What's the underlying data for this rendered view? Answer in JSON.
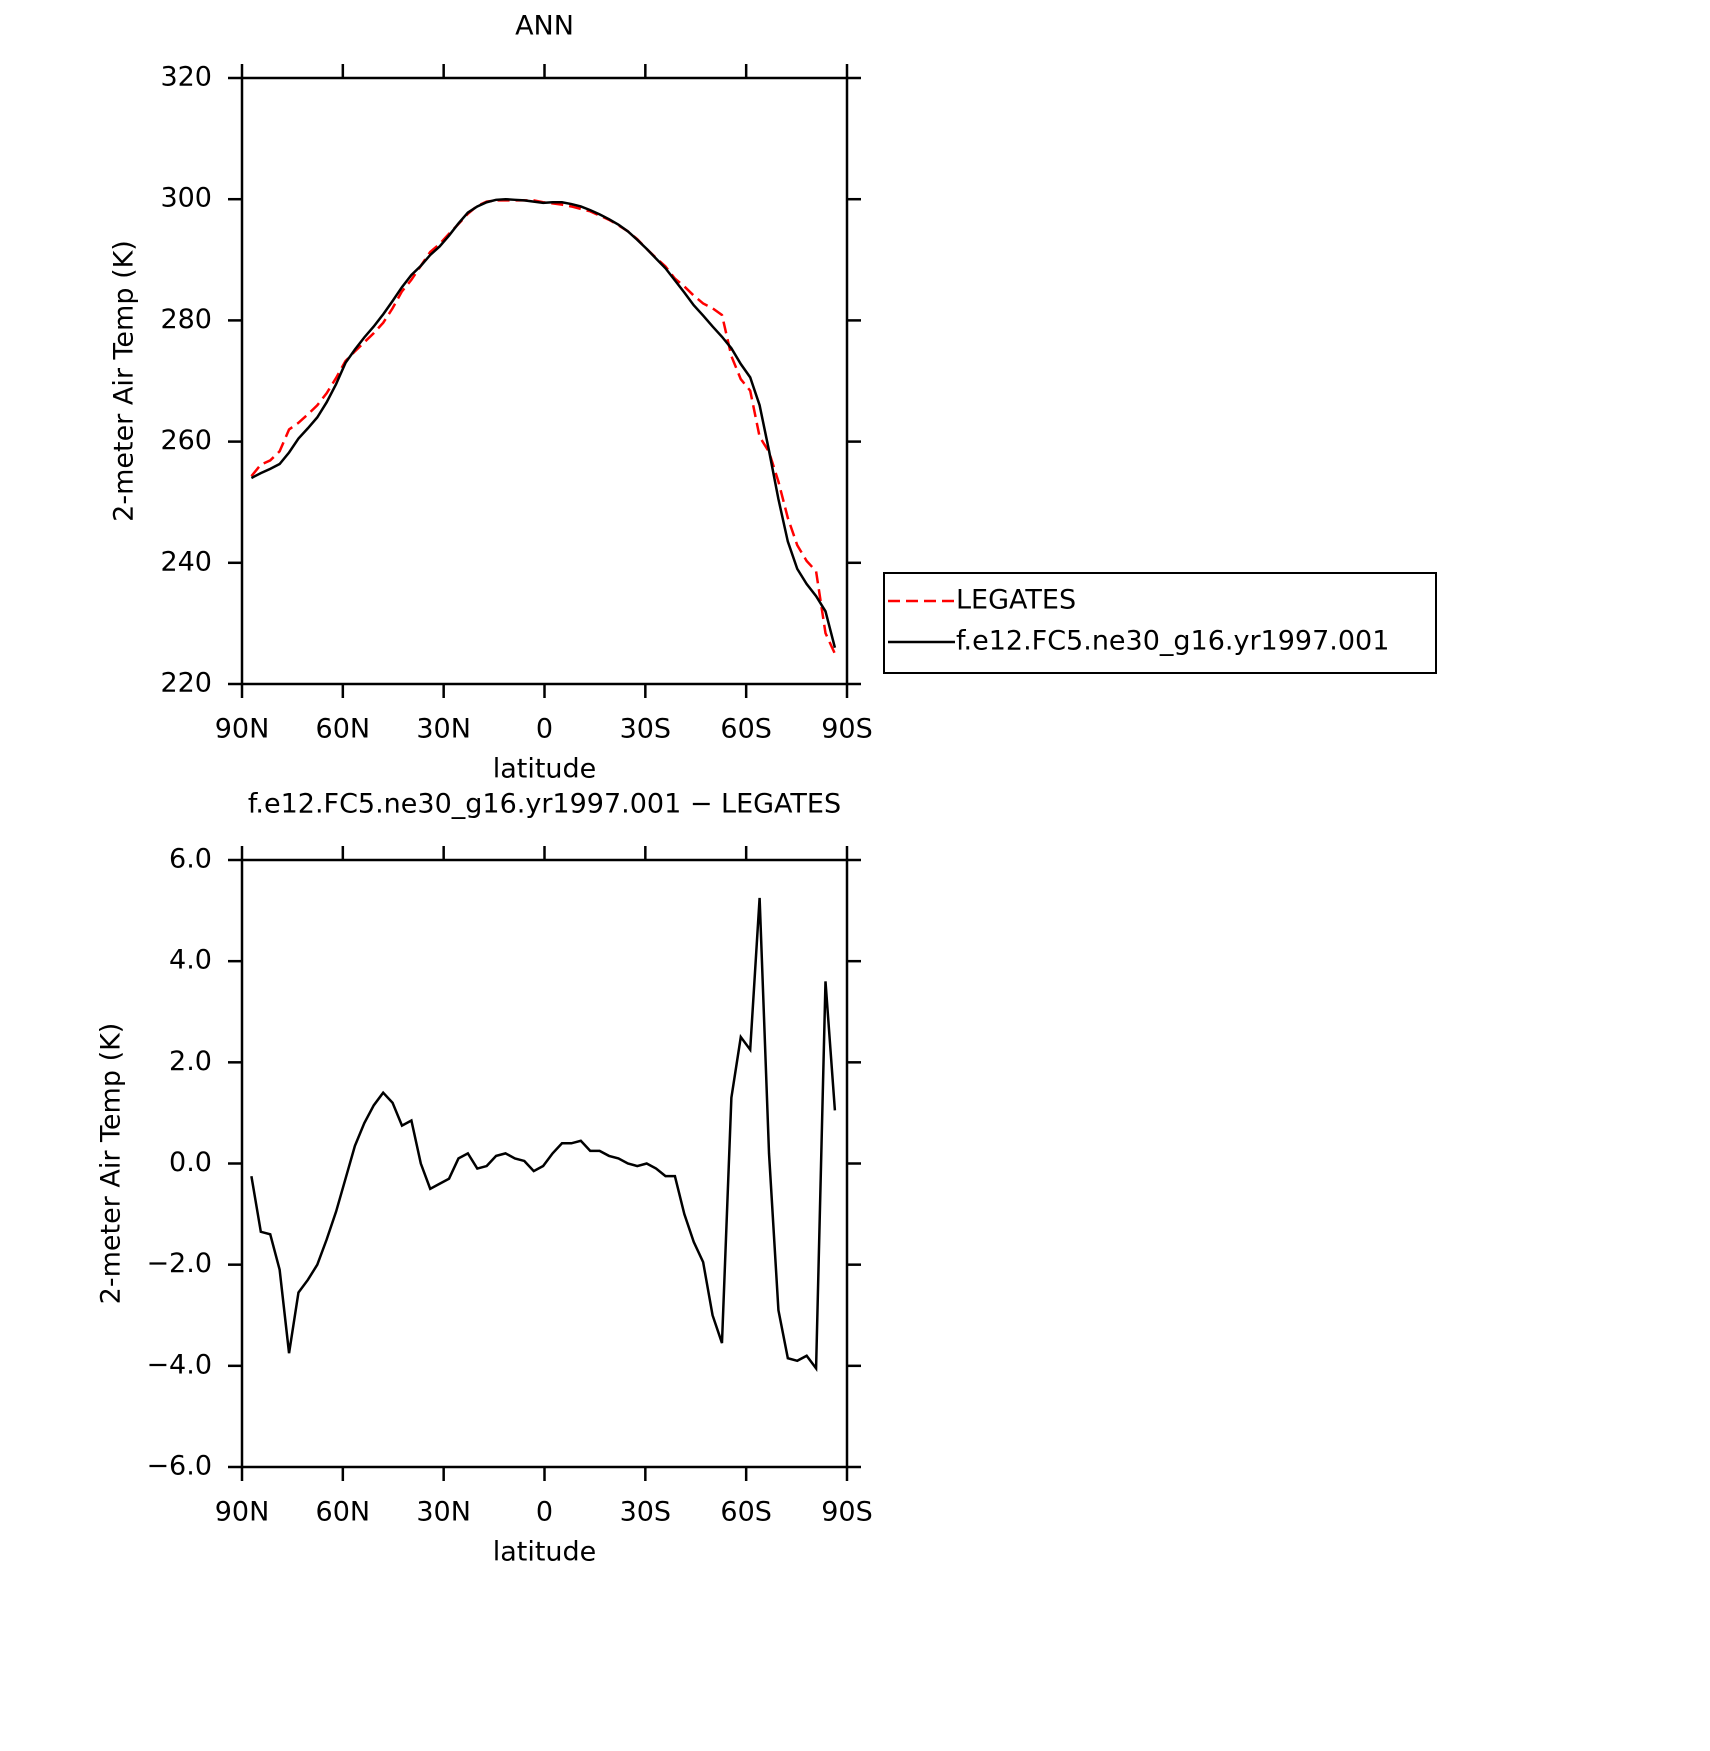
{
  "chart_data": [
    {
      "type": "line",
      "title": "ANN",
      "xlabel": "latitude",
      "ylabel": "2-meter Air Temp (K)",
      "x": [
        87.2,
        84.4,
        81.6,
        78.8,
        76.0,
        73.2,
        70.4,
        67.6,
        64.8,
        62.0,
        59.2,
        56.4,
        53.6,
        50.8,
        48.0,
        45.2,
        42.4,
        39.6,
        36.8,
        34.0,
        31.2,
        28.4,
        25.6,
        22.8,
        20.0,
        17.2,
        14.4,
        11.6,
        8.8,
        6.0,
        3.2,
        0.4,
        -2.4,
        -5.2,
        -8.0,
        -10.8,
        -13.6,
        -16.4,
        -19.2,
        -22.0,
        -24.8,
        -27.6,
        -30.4,
        -33.2,
        -36.0,
        -38.8,
        -41.6,
        -44.4,
        -47.2,
        -50.0,
        -52.8,
        -55.6,
        -58.4,
        -61.2,
        -64.0,
        -66.8,
        -69.6,
        -72.4,
        -75.2,
        -78.0,
        -80.8,
        -83.6,
        -86.4
      ],
      "series": [
        {
          "name": "LEGATES",
          "color": "#ff0000",
          "dashed": true,
          "values": [
            254.3,
            256.2,
            256.9,
            258.4,
            262.0,
            263.1,
            264.5,
            266.0,
            268.0,
            270.5,
            273.3,
            274.9,
            276.4,
            277.9,
            279.6,
            282.0,
            284.8,
            286.7,
            289.0,
            291.3,
            292.6,
            294.3,
            295.9,
            297.6,
            298.9,
            299.6,
            299.8,
            299.8,
            299.8,
            299.8,
            299.8,
            299.5,
            299.3,
            299.1,
            298.8,
            298.4,
            298.0,
            297.3,
            296.6,
            295.7,
            294.7,
            293.4,
            291.8,
            290.3,
            288.9,
            286.9,
            285.6,
            284.1,
            282.8,
            282.0,
            280.9,
            274.1,
            270.3,
            268.4,
            260.8,
            258.3,
            253.4,
            247.4,
            242.9,
            240.3,
            238.6,
            228.4,
            225.0
          ]
        },
        {
          "name": "f.e12.FC5.ne30_g16.yr1997.001",
          "color": "#000000",
          "dashed": false,
          "values": [
            254.0,
            254.8,
            255.5,
            256.3,
            258.2,
            260.5,
            262.2,
            264.0,
            266.5,
            269.5,
            273.0,
            275.2,
            277.2,
            279.0,
            281.0,
            283.2,
            285.5,
            287.5,
            289.0,
            290.8,
            292.2,
            294.0,
            296.0,
            297.8,
            298.8,
            299.5,
            299.9,
            300.0,
            299.9,
            299.8,
            299.6,
            299.4,
            299.5,
            299.5,
            299.2,
            298.8,
            298.2,
            297.5,
            296.7,
            295.8,
            294.7,
            293.3,
            291.8,
            290.2,
            288.6,
            286.6,
            284.6,
            282.5,
            280.8,
            279.0,
            277.3,
            275.4,
            272.8,
            270.6,
            266.0,
            258.5,
            250.5,
            243.5,
            239.0,
            236.5,
            234.5,
            232.0,
            226.0
          ]
        }
      ],
      "xlim": [
        90,
        -90
      ],
      "xticks": [
        {
          "value": 90,
          "label": "90N"
        },
        {
          "value": 60,
          "label": "60N"
        },
        {
          "value": 30,
          "label": "30N"
        },
        0,
        {
          "value": -30,
          "label": "30S"
        },
        {
          "value": -60,
          "label": "60S"
        },
        {
          "value": -90,
          "label": "90S"
        }
      ],
      "ylim": [
        220,
        320
      ],
      "yticks": [
        220,
        240,
        260,
        280,
        300,
        320
      ],
      "legend": "right"
    },
    {
      "type": "line",
      "title": "f.e12.FC5.ne30_g16.yr1997.001 − LEGATES",
      "xlabel": "latitude",
      "ylabel": "2-meter Air Temp (K)",
      "x": [
        87.2,
        84.4,
        81.6,
        78.8,
        76.0,
        73.2,
        70.4,
        67.6,
        64.8,
        62.0,
        59.2,
        56.4,
        53.6,
        50.8,
        48.0,
        45.2,
        42.4,
        39.6,
        36.8,
        34.0,
        31.2,
        28.4,
        25.6,
        22.8,
        20.0,
        17.2,
        14.4,
        11.6,
        8.8,
        6.0,
        3.2,
        0.4,
        -2.4,
        -5.2,
        -8.0,
        -10.8,
        -13.6,
        -16.4,
        -19.2,
        -22.0,
        -24.8,
        -27.6,
        -30.4,
        -33.2,
        -36.0,
        -38.8,
        -41.6,
        -44.4,
        -47.2,
        -50.0,
        -52.8,
        -55.6,
        -58.4,
        -61.2,
        -64.0,
        -66.8,
        -69.6,
        -72.4,
        -75.2,
        -78.0,
        -80.8,
        -83.6,
        -86.4
      ],
      "series": [
        {
          "name": "f.e12.FC5.ne30_g16.yr1997.001 − LEGATES",
          "color": "#000000",
          "dashed": false,
          "values": [
            -0.25,
            -1.35,
            -1.4,
            -2.1,
            -3.75,
            -2.55,
            -2.3,
            -2.0,
            -1.5,
            -0.95,
            -0.3,
            0.35,
            0.8,
            1.15,
            1.4,
            1.2,
            0.75,
            0.85,
            0.0,
            -0.5,
            -0.4,
            -0.3,
            0.1,
            0.2,
            -0.1,
            -0.05,
            0.15,
            0.2,
            0.1,
            0.05,
            -0.15,
            -0.05,
            0.2,
            0.4,
            0.4,
            0.45,
            0.25,
            0.25,
            0.15,
            0.1,
            0.0,
            -0.05,
            0.0,
            -0.1,
            -0.25,
            -0.25,
            -1.0,
            -1.55,
            -1.95,
            -3.0,
            -3.55,
            1.3,
            2.5,
            2.25,
            5.25,
            0.2,
            -2.9,
            -3.85,
            -3.9,
            -3.8,
            -4.05,
            3.6,
            1.05
          ]
        }
      ],
      "xlim": [
        90,
        -90
      ],
      "xticks": [
        {
          "value": 90,
          "label": "90N"
        },
        {
          "value": 60,
          "label": "60N"
        },
        {
          "value": 30,
          "label": "30N"
        },
        0,
        {
          "value": -30,
          "label": "30S"
        },
        {
          "value": -60,
          "label": "60S"
        },
        {
          "value": -90,
          "label": "90S"
        }
      ],
      "ylim": [
        -6,
        6
      ],
      "yticks": [
        {
          "value": -6,
          "label": "−6.0"
        },
        {
          "value": -4,
          "label": "−4.0"
        },
        {
          "value": -2,
          "label": "−2.0"
        },
        {
          "value": 0,
          "label": "0.0"
        },
        {
          "value": 2,
          "label": "2.0"
        },
        {
          "value": 4,
          "label": "4.0"
        },
        {
          "value": 6,
          "label": "6.0"
        }
      ]
    }
  ]
}
